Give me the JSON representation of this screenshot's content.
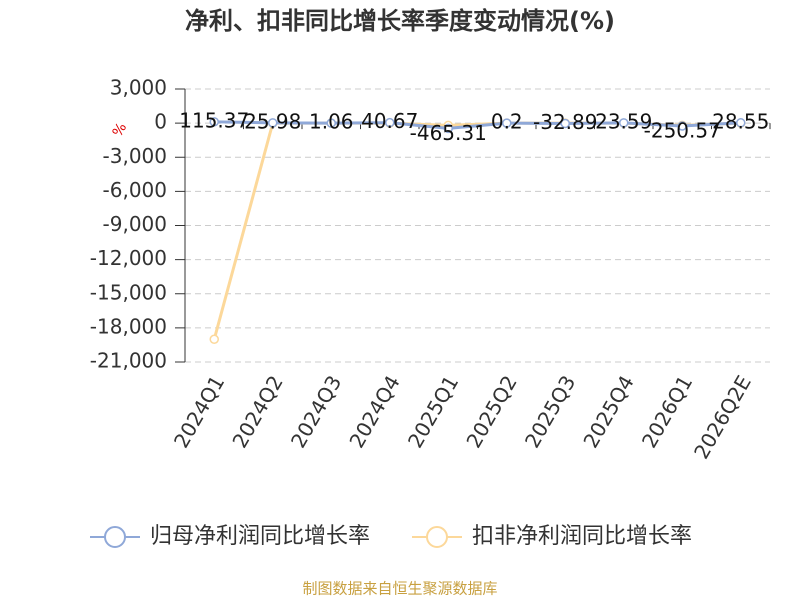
{
  "chart_data": {
    "type": "line",
    "title": "净利、扣非同比增长率季度变动情况(%)",
    "y_label": "%",
    "categories": [
      "2024Q1",
      "2024Q2",
      "2024Q3",
      "2024Q4",
      "2025Q1",
      "2025Q2",
      "2025Q3",
      "2025Q4",
      "2026Q1",
      "2026Q2E"
    ],
    "series": [
      {
        "name": "归母净利润同比增长率",
        "color": "#8fa8d8",
        "values": [
          115.37,
          25.98,
          1.06,
          40.67,
          -465.31,
          0.2,
          -32.89,
          23.59,
          -250.57,
          28.55
        ]
      },
      {
        "name": "扣非净利润同比增长率",
        "color": "#fcd89a",
        "values": [
          -19000,
          0,
          0,
          0,
          -200,
          0,
          0,
          0,
          -200,
          0
        ]
      }
    ],
    "ylim": [
      -21000,
      3000
    ],
    "yticks": [
      {
        "value": 3000,
        "label": "3,000"
      },
      0,
      {
        "value": -3000,
        "label": "-3,000"
      },
      {
        "value": -6000,
        "label": "-6,000"
      },
      {
        "value": -9000,
        "label": "-9,000"
      },
      {
        "value": -12000,
        "label": "-12,000"
      },
      {
        "value": -15000,
        "label": "-15,000"
      },
      {
        "value": -18000,
        "label": "-18,000"
      },
      {
        "value": -21000,
        "label": "-21,000"
      }
    ],
    "grid": true,
    "source": "制图数据来自恒生聚源数据库"
  }
}
